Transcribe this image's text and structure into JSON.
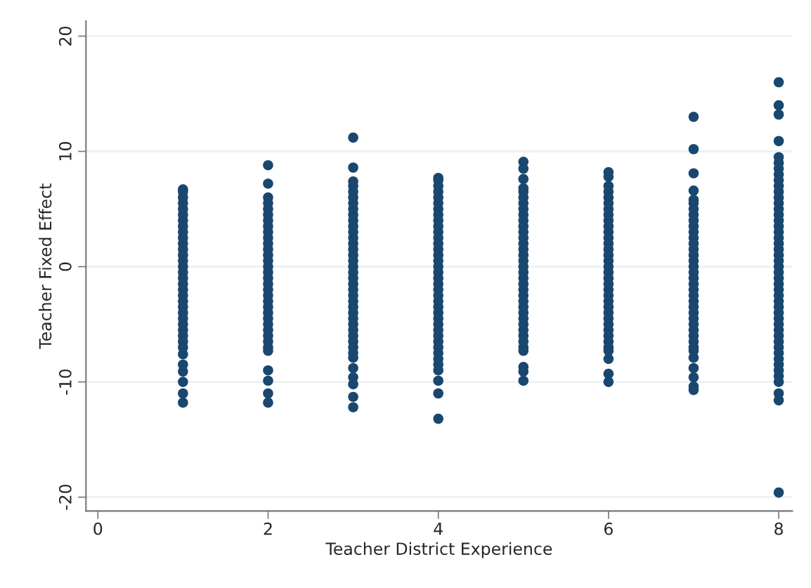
{
  "chart_data": {
    "type": "scatter",
    "xlabel": "Teacher District Experience",
    "ylabel": "Teacher Fixed Effect",
    "xlim": [
      -0.14,
      8.16
    ],
    "ylim": [
      -21.2,
      21.3
    ],
    "xticks": [
      0,
      2,
      4,
      6,
      8
    ],
    "yticks": [
      -20,
      -10,
      0,
      10,
      20
    ],
    "grid": "y",
    "marker": "circle",
    "series": [
      {
        "color": "#1a476f",
        "x": [
          1,
          1,
          1,
          1,
          1,
          1,
          1,
          1,
          1,
          1,
          1,
          1,
          1,
          1,
          1,
          1,
          1,
          1,
          1,
          1,
          1,
          1,
          1,
          1,
          1,
          1,
          1,
          1,
          1,
          1,
          1,
          1,
          1,
          1,
          1,
          2,
          2,
          2,
          2,
          2,
          2,
          2,
          2,
          2,
          2,
          2,
          2,
          2,
          2,
          2,
          2,
          2,
          2,
          2,
          2,
          2,
          2,
          2,
          2,
          2,
          2,
          2,
          2,
          2,
          2,
          2,
          2,
          2,
          2,
          3,
          3,
          3,
          3,
          3,
          3,
          3,
          3,
          3,
          3,
          3,
          3,
          3,
          3,
          3,
          3,
          3,
          3,
          3,
          3,
          3,
          3,
          3,
          3,
          3,
          3,
          3,
          3,
          3,
          3,
          3,
          3,
          3,
          3,
          3,
          3,
          3,
          3,
          3,
          4,
          4,
          4,
          4,
          4,
          4,
          4,
          4,
          4,
          4,
          4,
          4,
          4,
          4,
          4,
          4,
          4,
          4,
          4,
          4,
          4,
          4,
          4,
          4,
          4,
          4,
          4,
          4,
          4,
          4,
          4,
          4,
          4,
          4,
          4,
          4,
          4,
          4,
          5,
          5,
          5,
          5,
          5,
          5,
          5,
          5,
          5,
          5,
          5,
          5,
          5,
          5,
          5,
          5,
          5,
          5,
          5,
          5,
          5,
          5,
          5,
          5,
          5,
          5,
          5,
          5,
          5,
          5,
          5,
          5,
          5,
          5,
          5,
          5,
          6,
          6,
          6,
          6,
          6,
          6,
          6,
          6,
          6,
          6,
          6,
          6,
          6,
          6,
          6,
          6,
          6,
          6,
          6,
          6,
          6,
          6,
          6,
          6,
          6,
          6,
          6,
          6,
          6,
          6,
          6,
          6,
          6,
          6,
          6,
          7,
          7,
          7,
          7,
          7,
          7,
          7,
          7,
          7,
          7,
          7,
          7,
          7,
          7,
          7,
          7,
          7,
          7,
          7,
          7,
          7,
          7,
          7,
          7,
          7,
          7,
          7,
          7,
          7,
          7,
          7,
          7,
          7,
          7,
          7,
          7,
          7,
          8,
          8,
          8,
          8,
          8,
          8,
          8,
          8,
          8,
          8,
          8,
          8,
          8,
          8,
          8,
          8,
          8,
          8,
          8,
          8,
          8,
          8,
          8,
          8,
          8,
          8,
          8,
          8,
          8,
          8,
          8,
          8,
          8,
          8,
          8,
          8,
          8,
          8,
          8,
          8,
          8,
          8,
          8,
          8,
          8,
          8,
          8
        ],
        "values": [
          6.7,
          6.5,
          6,
          5.5,
          5,
          4.5,
          4,
          3.5,
          3,
          2.5,
          2,
          1.5,
          1,
          0.5,
          0,
          -0.5,
          -1,
          -1.5,
          -2,
          -2.5,
          -3,
          -3.5,
          -4,
          -4.5,
          -5,
          -5.5,
          -6,
          -6.5,
          -7,
          -7.6,
          -8.5,
          -9.1,
          -10,
          -11,
          -11.8,
          8.8,
          7.2,
          6,
          5.5,
          5,
          4.5,
          4,
          3.5,
          3,
          2.5,
          2,
          1.5,
          1,
          0.5,
          0,
          -0.5,
          -1,
          -1.5,
          -2,
          -2.5,
          -3,
          -3.5,
          -4,
          -4.5,
          -5,
          -5.5,
          -6,
          -6.5,
          -7,
          -7.3,
          -9,
          -9.9,
          -11,
          -11.8,
          11.2,
          8.6,
          7.4,
          7,
          6.5,
          6,
          5.5,
          5,
          4.5,
          4,
          3.5,
          3,
          2.5,
          2,
          1.5,
          1,
          0.5,
          0,
          -0.5,
          -1,
          -1.5,
          -2,
          -2.5,
          -3,
          -3.5,
          -4,
          -4.5,
          -5,
          -5.5,
          -6,
          -6.5,
          -7,
          -7.5,
          -7.9,
          -8.8,
          -9.6,
          -10.2,
          -11.3,
          -12.2,
          7.7,
          7.5,
          7,
          6.5,
          6,
          5.5,
          5,
          4.5,
          4,
          3.5,
          3,
          2.5,
          2,
          1.5,
          1,
          0.5,
          0,
          -0.5,
          -1,
          -1.5,
          -2,
          -2.5,
          -3,
          -3.5,
          -4,
          -4.5,
          -5,
          -5.5,
          -6,
          -6.5,
          -7,
          -7.5,
          -8,
          -8.5,
          -9,
          -9.9,
          -11,
          -13.2,
          9.1,
          8.5,
          7.6,
          6.8,
          6.5,
          6,
          5.5,
          5,
          4.5,
          4,
          3.5,
          3,
          2.5,
          2,
          1.5,
          1,
          0.5,
          0,
          -0.5,
          -1,
          -1.5,
          -2,
          -2.5,
          -3,
          -3.5,
          -4,
          -4.5,
          -5,
          -5.5,
          -6,
          -6.5,
          -7,
          -7.3,
          -8.7,
          -9.1,
          -9.9,
          8.2,
          7.8,
          7,
          6.5,
          6,
          5.5,
          5,
          4.5,
          4,
          3.5,
          3,
          2.5,
          2,
          1.5,
          1,
          0.5,
          0,
          -0.5,
          -1,
          -1.5,
          -2,
          -2.5,
          -3,
          -3.5,
          -4,
          -4.5,
          -5,
          -5.5,
          -6,
          -6.5,
          -7,
          -7.3,
          -8,
          -9.3,
          -10,
          13,
          10.2,
          8.1,
          6.6,
          5.8,
          5.5,
          5,
          4.5,
          4,
          3.5,
          3,
          2.5,
          2,
          1.5,
          1,
          0.5,
          0,
          -0.5,
          -1,
          -1.5,
          -2,
          -2.5,
          -3,
          -3.5,
          -4,
          -4.5,
          -5,
          -5.5,
          -6,
          -6.5,
          -7,
          -7.3,
          -7.9,
          -8.8,
          -9.6,
          -10.4,
          -10.7,
          16,
          14,
          13.2,
          10.9,
          9.5,
          9,
          8.5,
          8,
          7.5,
          7,
          6.5,
          6,
          5.5,
          5,
          4.5,
          4,
          3.5,
          3,
          2.5,
          2,
          1.5,
          1,
          0.5,
          0,
          -0.5,
          -1,
          -1.5,
          -2,
          -2.5,
          -3,
          -3.5,
          -4,
          -4.5,
          -5,
          -5.5,
          -6,
          -6.5,
          -7,
          -7.5,
          -8,
          -8.5,
          -9,
          -9.5,
          -10,
          -11,
          -11.6,
          -19.6
        ]
      }
    ]
  }
}
